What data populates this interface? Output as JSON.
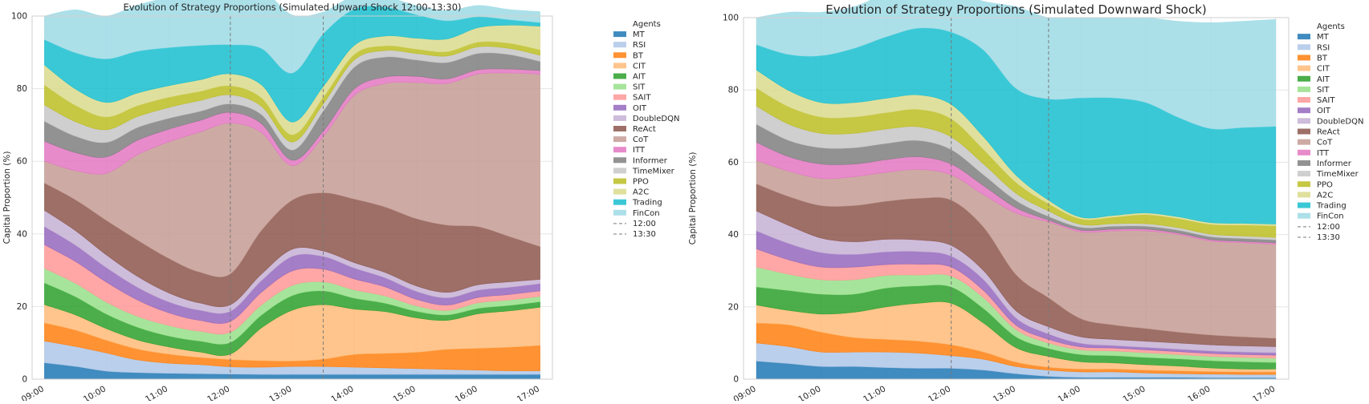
{
  "chart_data": [
    {
      "type": "area",
      "title": "Evolution of Strategy Proportions (Simulated Upward Shock 12:00-13:30)",
      "xlabel": "",
      "ylabel": "Capital Proportion (%)",
      "ylim": [
        0,
        100
      ],
      "yticks": [
        0,
        20,
        40,
        60,
        80,
        100
      ],
      "xlim": [
        -0.2,
        8.2
      ],
      "x_ticks": [
        0,
        1,
        2,
        3,
        4,
        5,
        6,
        7,
        8
      ],
      "x_tick_labels": [
        "09:00",
        "10:00",
        "11:00",
        "12:00",
        "13:00",
        "14:00",
        "15:00",
        "16:00",
        "17:00"
      ],
      "x": [
        0,
        0.5,
        1,
        1.5,
        2,
        2.5,
        3,
        3.5,
        4,
        4.5,
        5,
        5.5,
        6,
        6.5,
        7,
        7.5,
        8
      ],
      "vlines": [
        {
          "label": "12:00",
          "x": 3.0
        },
        {
          "label": "13:30",
          "x": 4.5
        }
      ],
      "legend_title": "Agents",
      "series": [
        {
          "name": "MT",
          "color": "#1f77b4",
          "values": [
            4.5,
            3.5,
            2.2,
            1.8,
            1.6,
            1.5,
            1.4,
            1.3,
            1.3,
            1.3,
            1.3,
            1.3,
            1.3,
            1.3,
            1.3,
            1.3,
            1.3
          ]
        },
        {
          "name": "RSI",
          "color": "#aec7e8",
          "values": [
            6.0,
            5.5,
            5.0,
            3.5,
            2.8,
            2.5,
            2.0,
            2.0,
            2.2,
            2.2,
            2.0,
            1.8,
            1.6,
            1.4,
            1.2,
            1.0,
            1.0
          ]
        },
        {
          "name": "BT",
          "color": "#ff7f0e",
          "values": [
            5.0,
            4.5,
            3.5,
            3.0,
            2.5,
            2.0,
            2.0,
            1.8,
            1.5,
            2.0,
            3.5,
            4.0,
            4.5,
            5.5,
            6.0,
            6.5,
            7.0
          ]
        },
        {
          "name": "CIT",
          "color": "#ffbb78",
          "values": [
            5.0,
            4.2,
            3.2,
            2.5,
            2.0,
            1.5,
            1.5,
            9.0,
            14.0,
            15.0,
            12.5,
            11.5,
            9.5,
            8.0,
            9.5,
            10.0,
            10.5
          ]
        },
        {
          "name": "AIT",
          "color": "#2ca02c",
          "values": [
            6.0,
            5.0,
            4.0,
            3.5,
            3.0,
            3.0,
            3.2,
            3.5,
            4.0,
            3.8,
            3.0,
            2.3,
            1.8,
            1.5,
            1.5,
            1.5,
            1.5
          ]
        },
        {
          "name": "SIT",
          "color": "#98df8a",
          "values": [
            4.0,
            3.7,
            3.3,
            3.0,
            2.9,
            2.7,
            2.8,
            2.8,
            2.8,
            2.5,
            2.3,
            2.0,
            1.5,
            1.2,
            1.5,
            1.5,
            1.5
          ]
        },
        {
          "name": "SAIT",
          "color": "#ff9896",
          "values": [
            6.5,
            6.0,
            5.5,
            4.5,
            3.5,
            3.0,
            3.0,
            3.5,
            4.0,
            3.5,
            3.0,
            2.5,
            1.8,
            1.5,
            1.5,
            1.5,
            1.5
          ]
        },
        {
          "name": "OIT",
          "color": "#9467bd",
          "values": [
            5.0,
            4.5,
            4.0,
            3.5,
            3.0,
            2.8,
            2.8,
            3.2,
            4.0,
            3.5,
            3.0,
            2.5,
            2.2,
            2.0,
            2.0,
            2.0,
            2.0
          ]
        },
        {
          "name": "DoubleDQN",
          "color": "#c5b0d5",
          "values": [
            4.5,
            4.0,
            3.5,
            3.0,
            2.5,
            2.0,
            1.8,
            1.8,
            2.0,
            1.5,
            1.5,
            1.5,
            1.5,
            1.5,
            1.5,
            1.5,
            1.2
          ]
        },
        {
          "name": "ReAct",
          "color": "#8c564b",
          "values": [
            7.5,
            8.5,
            9.5,
            10.0,
            9.5,
            8.5,
            8.5,
            12.0,
            13.5,
            16.0,
            17.5,
            18.0,
            18.5,
            18.5,
            16.0,
            12.5,
            9.0
          ]
        },
        {
          "name": "CoT",
          "color": "#c49c94",
          "values": [
            6.0,
            8.0,
            13.0,
            23.5,
            32.0,
            38.5,
            41.5,
            27.0,
            9.5,
            15.5,
            28.5,
            34.0,
            37.5,
            39.0,
            42.0,
            45.0,
            47.5
          ]
        },
        {
          "name": "ITT",
          "color": "#e377c2",
          "values": [
            5.5,
            5.0,
            4.5,
            4.0,
            3.5,
            3.2,
            3.0,
            2.5,
            1.5,
            1.5,
            1.8,
            1.8,
            1.7,
            1.3,
            1.2,
            1.1,
            1.0
          ]
        },
        {
          "name": "Informer",
          "color": "#7f7f7f",
          "values": [
            5.5,
            4.5,
            4.0,
            3.5,
            3.0,
            2.5,
            2.3,
            2.5,
            2.8,
            5.5,
            6.0,
            5.5,
            4.5,
            4.5,
            4.5,
            4.0,
            2.5
          ]
        },
        {
          "name": "TimeMixer",
          "color": "#c7c7c7",
          "values": [
            4.5,
            4.0,
            3.5,
            3.0,
            3.0,
            3.0,
            2.5,
            2.3,
            2.2,
            2.0,
            2.0,
            1.8,
            1.8,
            1.8,
            1.8,
            1.7,
            1.7
          ]
        },
        {
          "name": "PPO",
          "color": "#bcbd22",
          "values": [
            5.5,
            4.5,
            3.5,
            3.0,
            2.8,
            2.5,
            2.5,
            2.3,
            2.0,
            1.8,
            1.5,
            1.3,
            1.2,
            1.2,
            1.3,
            1.4,
            1.5
          ]
        },
        {
          "name": "A2C",
          "color": "#dbdb8d",
          "values": [
            5.5,
            4.5,
            4.0,
            3.5,
            3.2,
            3.2,
            3.3,
            3.6,
            3.5,
            3.0,
            2.5,
            2.7,
            3.0,
            3.5,
            4.0,
            5.0,
            6.5
          ]
        },
        {
          "name": "Trading",
          "color": "#17becf",
          "values": [
            7.0,
            10.0,
            12.0,
            11.5,
            10.5,
            9.5,
            8.0,
            10.0,
            13.5,
            14.5,
            10.0,
            8.0,
            6.5,
            5.0,
            3.0,
            1.5,
            1.0
          ]
        },
        {
          "name": "FinCon",
          "color": "#9edae5",
          "values": [
            6.5,
            11.8,
            11.8,
            12.7,
            13.7,
            13.6,
            13.4,
            16.0,
            16.0,
            6.0,
            3.6,
            2.8,
            2.5,
            2.8,
            3.1,
            2.8,
            3.0
          ]
        }
      ]
    },
    {
      "type": "area",
      "title": "Evolution of Strategy Proportions (Simulated Downward Shock)",
      "xlabel": "",
      "ylabel": "Capital Proportion (%)",
      "ylim": [
        0,
        100
      ],
      "yticks": [
        0,
        20,
        40,
        60,
        80,
        100
      ],
      "xlim": [
        -0.2,
        8.2
      ],
      "x_ticks": [
        0,
        1,
        2,
        3,
        4,
        5,
        6,
        7,
        8
      ],
      "x_tick_labels": [
        "09:00",
        "10:00",
        "11:00",
        "12:00",
        "13:00",
        "14:00",
        "15:00",
        "16:00",
        "17:00"
      ],
      "x": [
        0,
        0.5,
        1,
        1.5,
        2,
        2.5,
        3,
        3.5,
        4,
        4.5,
        5,
        5.5,
        6,
        6.5,
        7,
        7.5,
        8
      ],
      "vlines": [
        {
          "label": "12:00",
          "x": 3.0
        },
        {
          "label": "13:30",
          "x": 4.5
        }
      ],
      "legend_title": "Agents",
      "series": [
        {
          "name": "MT",
          "color": "#1f77b4",
          "values": [
            5.0,
            4.3,
            3.5,
            3.5,
            3.2,
            3.0,
            3.0,
            2.5,
            1.5,
            0.8,
            0.5,
            0.5,
            0.5,
            0.5,
            0.4,
            0.4,
            0.4
          ]
        },
        {
          "name": "RSI",
          "color": "#aec7e8",
          "values": [
            5.0,
            4.7,
            4.0,
            4.0,
            4.3,
            4.2,
            3.5,
            3.0,
            2.0,
            1.7,
            1.5,
            1.5,
            1.2,
            1.0,
            1.0,
            0.9,
            0.9
          ]
        },
        {
          "name": "BT",
          "color": "#ff7f0e",
          "values": [
            5.5,
            6.0,
            5.5,
            4.0,
            3.5,
            3.3,
            3.0,
            2.0,
            1.2,
            0.8,
            0.8,
            0.8,
            0.8,
            0.8,
            0.7,
            0.7,
            0.7
          ]
        },
        {
          "name": "CIT",
          "color": "#ffbb78",
          "values": [
            5.0,
            4.0,
            5.0,
            7.0,
            9.0,
            10.5,
            11.5,
            8.0,
            4.0,
            3.0,
            2.0,
            1.7,
            1.5,
            1.3,
            1.0,
            0.8,
            0.8
          ]
        },
        {
          "name": "AIT",
          "color": "#2ca02c",
          "values": [
            5.0,
            5.5,
            5.5,
            5.0,
            5.2,
            4.8,
            4.5,
            4.0,
            3.0,
            2.2,
            2.0,
            2.0,
            2.0,
            2.0,
            2.0,
            2.0,
            1.8
          ]
        },
        {
          "name": "SIT",
          "color": "#98df8a",
          "values": [
            5.5,
            4.5,
            4.0,
            4.0,
            3.5,
            3.0,
            3.0,
            3.0,
            2.0,
            1.5,
            1.3,
            1.3,
            1.3,
            1.2,
            1.2,
            1.2,
            1.2
          ]
        },
        {
          "name": "SAIT",
          "color": "#ff9896",
          "values": [
            5.0,
            4.0,
            3.5,
            3.5,
            3.0,
            3.0,
            2.5,
            2.0,
            1.2,
            1.0,
            0.8,
            0.8,
            0.8,
            0.8,
            0.8,
            0.8,
            0.8
          ]
        },
        {
          "name": "OIT",
          "color": "#9467bd",
          "values": [
            5.0,
            4.5,
            4.0,
            3.5,
            3.5,
            3.5,
            3.0,
            3.0,
            2.0,
            1.5,
            1.0,
            0.7,
            0.7,
            0.7,
            0.7,
            0.7,
            0.7
          ]
        },
        {
          "name": "DoubleDQN",
          "color": "#c5b0d5",
          "values": [
            5.5,
            5.0,
            4.0,
            3.5,
            3.5,
            3.2,
            3.0,
            2.5,
            2.0,
            2.0,
            1.8,
            1.7,
            1.7,
            1.7,
            1.7,
            1.7,
            1.7
          ]
        },
        {
          "name": "ReAct",
          "color": "#8c564b",
          "values": [
            7.5,
            8.0,
            9.0,
            10.0,
            10.5,
            11.5,
            12.5,
            12.0,
            10.0,
            8.0,
            5.0,
            4.0,
            3.5,
            3.0,
            2.7,
            2.5,
            2.3
          ]
        },
        {
          "name": "CoT",
          "color": "#c49c94",
          "values": [
            6.5,
            7.0,
            7.5,
            8.0,
            8.0,
            8.0,
            7.0,
            9.0,
            17.0,
            21.0,
            24.0,
            26.0,
            27.0,
            27.0,
            26.0,
            26.0,
            26.0
          ]
        },
        {
          "name": "ITT",
          "color": "#e377c2",
          "values": [
            5.0,
            4.0,
            4.0,
            3.5,
            3.5,
            3.5,
            3.0,
            2.5,
            1.5,
            0.5,
            0.5,
            0.5,
            0.5,
            0.4,
            0.4,
            0.4,
            0.4
          ]
        },
        {
          "name": "Informer",
          "color": "#7f7f7f",
          "values": [
            5.0,
            4.5,
            4.5,
            4.5,
            4.5,
            4.5,
            4.0,
            3.0,
            2.0,
            1.0,
            0.8,
            0.8,
            0.8,
            0.8,
            0.8,
            0.8,
            0.8
          ]
        },
        {
          "name": "TimeMixer",
          "color": "#c7c7c7",
          "values": [
            5.0,
            4.5,
            4.0,
            4.0,
            4.0,
            3.8,
            3.5,
            3.0,
            2.0,
            1.5,
            0.8,
            0.7,
            0.7,
            0.7,
            0.7,
            0.7,
            0.7
          ]
        },
        {
          "name": "PPO",
          "color": "#bcbd22",
          "values": [
            5.0,
            4.8,
            4.5,
            4.5,
            4.5,
            4.8,
            5.0,
            4.0,
            3.0,
            2.0,
            1.5,
            1.8,
            2.5,
            2.5,
            2.7,
            3.0,
            3.2
          ]
        },
        {
          "name": "A2C",
          "color": "#dbdb8d",
          "values": [
            5.0,
            4.5,
            4.0,
            4.0,
            4.0,
            4.0,
            4.0,
            3.5,
            2.0,
            1.0,
            0.5,
            0.5,
            0.5,
            0.5,
            0.5,
            0.5,
            0.5
          ]
        },
        {
          "name": "Trading",
          "color": "#17becf",
          "values": [
            7.0,
            10.0,
            13.0,
            15.0,
            17.0,
            18.5,
            20.0,
            24.0,
            24.0,
            28.0,
            33.0,
            32.5,
            30.5,
            27.5,
            26.0,
            26.5,
            27.0
          ]
        },
        {
          "name": "FinCon",
          "color": "#9edae5",
          "values": [
            7.5,
            11.7,
            12.0,
            11.5,
            11.8,
            10.4,
            11.5,
            13.5,
            22.6,
            22.5,
            22.2,
            22.2,
            23.5,
            26.6,
            29.3,
            29.4,
            29.6
          ]
        }
      ]
    }
  ]
}
